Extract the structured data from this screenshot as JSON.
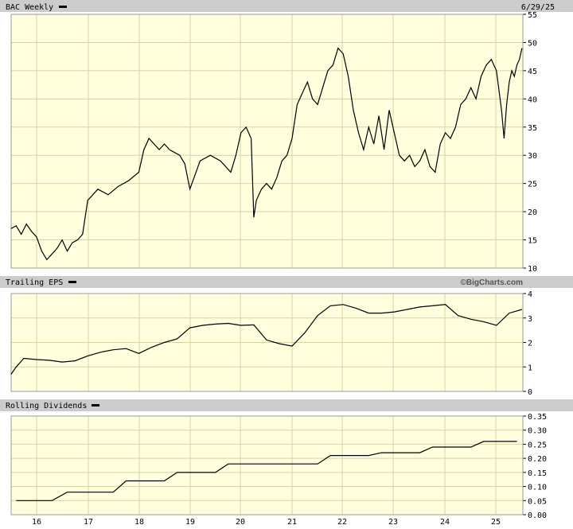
{
  "header": {
    "title": "BAC Weekly",
    "date": "6/29/25"
  },
  "panels": {
    "eps": {
      "title": "Trailing EPS",
      "watermark": "©BigCharts.com"
    },
    "div": {
      "title": "Rolling Dividends"
    }
  },
  "colors": {
    "plot_bg": "#ffffdd",
    "grid": "#d4d3a2",
    "line": "#000000",
    "header_bg": "#cccccc"
  },
  "chart_data": [
    {
      "type": "line",
      "title": "BAC Weekly",
      "x_ticks": [
        "16",
        "17",
        "18",
        "19",
        "20",
        "21",
        "22",
        "23",
        "24",
        "25"
      ],
      "y_ticks": [
        10,
        15,
        20,
        25,
        30,
        35,
        40,
        45,
        50,
        55
      ],
      "ylim": [
        10,
        55
      ],
      "xlim": [
        2015.5,
        2025.5
      ],
      "grid": true,
      "series": [
        {
          "x": [
            2015.5,
            2015.6,
            2015.7,
            2015.8,
            2015.9,
            2016.0,
            2016.1,
            2016.2,
            2016.3,
            2016.4,
            2016.5,
            2016.6,
            2016.7,
            2016.8,
            2016.9,
            2017.0,
            2017.2,
            2017.4,
            2017.6,
            2017.8,
            2018.0,
            2018.1,
            2018.2,
            2018.4,
            2018.5,
            2018.6,
            2018.8,
            2018.9,
            2019.0,
            2019.2,
            2019.4,
            2019.6,
            2019.8,
            2019.9,
            2020.0,
            2020.1,
            2020.2,
            2020.25,
            2020.3,
            2020.4,
            2020.5,
            2020.6,
            2020.7,
            2020.8,
            2020.9,
            2021.0,
            2021.1,
            2021.2,
            2021.3,
            2021.4,
            2021.5,
            2021.6,
            2021.7,
            2021.8,
            2021.9,
            2022.0,
            2022.1,
            2022.2,
            2022.3,
            2022.4,
            2022.5,
            2022.6,
            2022.7,
            2022.8,
            2022.9,
            2023.0,
            2023.1,
            2023.2,
            2023.3,
            2023.4,
            2023.5,
            2023.6,
            2023.7,
            2023.8,
            2023.9,
            2024.0,
            2024.1,
            2024.2,
            2024.3,
            2024.4,
            2024.5,
            2024.6,
            2024.7,
            2024.8,
            2024.9,
            2025.0,
            2025.1,
            2025.15,
            2025.2,
            2025.25,
            2025.3,
            2025.35,
            2025.4,
            2025.45,
            2025.5
          ],
          "values": [
            17,
            17.5,
            16,
            17.8,
            16.5,
            15.5,
            13,
            11.5,
            12.5,
            13.5,
            15,
            13,
            14.5,
            15,
            16,
            22,
            24,
            23,
            24.5,
            25.5,
            27,
            31,
            33,
            31,
            32,
            31,
            30,
            28.5,
            24,
            29,
            30,
            29,
            27,
            30,
            34,
            35,
            33,
            19,
            22,
            24,
            25,
            24,
            26,
            29,
            30,
            33,
            39,
            41,
            43,
            40,
            39,
            42,
            45,
            46,
            49,
            48,
            44,
            38,
            34,
            31,
            35,
            32,
            37,
            31,
            38,
            34,
            30,
            29,
            30,
            28,
            29,
            31,
            28,
            27,
            32,
            34,
            33,
            35,
            39,
            40,
            42,
            40,
            44,
            46,
            47,
            45,
            38,
            33,
            39,
            43,
            45,
            44,
            46,
            47,
            49
          ]
        }
      ]
    },
    {
      "type": "line",
      "title": "Trailing EPS",
      "x_ticks": [
        "16",
        "17",
        "18",
        "19",
        "20",
        "21",
        "22",
        "23",
        "24",
        "25"
      ],
      "y_ticks": [
        0,
        1,
        2,
        3,
        4
      ],
      "ylim": [
        0,
        4
      ],
      "grid": true,
      "series": [
        {
          "x": [
            2015.5,
            2015.6,
            2015.75,
            2016.0,
            2016.25,
            2016.5,
            2016.75,
            2017.0,
            2017.25,
            2017.5,
            2017.75,
            2018.0,
            2018.25,
            2018.5,
            2018.75,
            2019.0,
            2019.25,
            2019.5,
            2019.75,
            2020.0,
            2020.25,
            2020.5,
            2020.75,
            2021.0,
            2021.25,
            2021.5,
            2021.75,
            2022.0,
            2022.25,
            2022.5,
            2022.75,
            2023.0,
            2023.25,
            2023.5,
            2023.75,
            2024.0,
            2024.25,
            2024.5,
            2024.75,
            2025.0,
            2025.25,
            2025.5
          ],
          "values": [
            0.7,
            1.0,
            1.35,
            1.3,
            1.27,
            1.2,
            1.25,
            1.45,
            1.6,
            1.7,
            1.75,
            1.55,
            1.8,
            2.0,
            2.15,
            2.6,
            2.7,
            2.75,
            2.78,
            2.7,
            2.72,
            2.1,
            1.95,
            1.85,
            2.4,
            3.1,
            3.5,
            3.55,
            3.4,
            3.2,
            3.2,
            3.25,
            3.35,
            3.45,
            3.5,
            3.55,
            3.1,
            2.95,
            2.85,
            2.7,
            3.2,
            3.35
          ]
        }
      ]
    },
    {
      "type": "line",
      "title": "Rolling Dividends",
      "x_ticks": [
        "16",
        "17",
        "18",
        "19",
        "20",
        "21",
        "22",
        "23",
        "24",
        "25"
      ],
      "y_ticks": [
        "0.00",
        "0.05",
        "0.10",
        "0.15",
        "0.20",
        "0.25",
        "0.30",
        "0.35"
      ],
      "ylim": [
        0,
        0.35
      ],
      "grid": true,
      "series": [
        {
          "x": [
            2015.6,
            2016.0,
            2016.3,
            2016.6,
            2017.0,
            2017.5,
            2017.75,
            2018.0,
            2018.5,
            2018.75,
            2019.0,
            2019.5,
            2019.75,
            2020.0,
            2020.5,
            2021.0,
            2021.5,
            2021.75,
            2022.0,
            2022.5,
            2022.75,
            2023.0,
            2023.5,
            2023.75,
            2024.0,
            2024.5,
            2024.75,
            2025.0,
            2025.4
          ],
          "values": [
            0.05,
            0.05,
            0.05,
            0.08,
            0.08,
            0.08,
            0.12,
            0.12,
            0.12,
            0.15,
            0.15,
            0.15,
            0.18,
            0.18,
            0.18,
            0.18,
            0.18,
            0.21,
            0.21,
            0.21,
            0.22,
            0.22,
            0.22,
            0.24,
            0.24,
            0.24,
            0.26,
            0.26,
            0.26
          ]
        }
      ]
    }
  ]
}
